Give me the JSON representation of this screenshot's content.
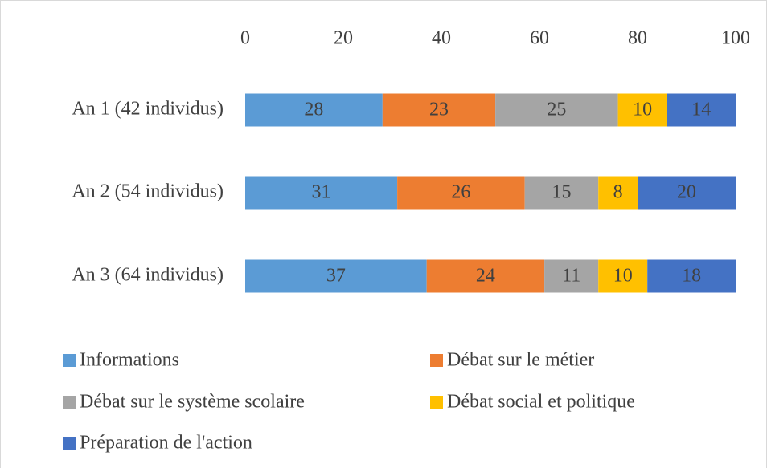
{
  "chart_data": {
    "type": "stacked_bar_horizontal",
    "categories": [
      "An 1 (42 individus)",
      "An 2 (54 individus)",
      "An 3 (64 individus)"
    ],
    "series": [
      {
        "name": "Informations",
        "color": "#5b9bd5",
        "values": [
          28,
          31,
          37
        ]
      },
      {
        "name": "Débat sur le métier",
        "color": "#ed7d31",
        "values": [
          23,
          26,
          24
        ]
      },
      {
        "name": "Débat sur le système scolaire",
        "color": "#a5a5a5",
        "values": [
          25,
          15,
          11
        ]
      },
      {
        "name": "Débat social et politique",
        "color": "#ffc000",
        "values": [
          10,
          8,
          10
        ]
      },
      {
        "name": "Préparation de l'action",
        "color": "#4472c4",
        "values": [
          14,
          20,
          18
        ]
      }
    ],
    "xlim": [
      0,
      100
    ],
    "xticks": [
      0,
      20,
      40,
      60,
      80,
      100
    ],
    "grid": false,
    "legend": "bottom"
  }
}
